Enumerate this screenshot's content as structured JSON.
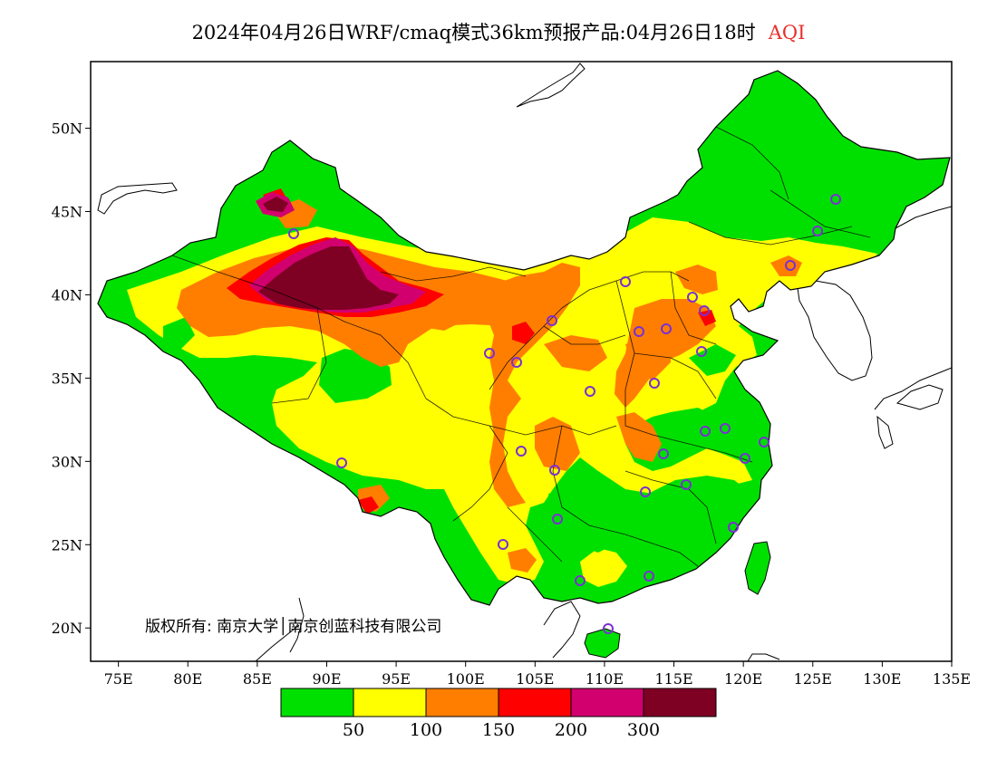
{
  "title": {
    "text": "2024年04月26日WRF/cmaq模式36km预报产品:04月26日18时",
    "variable": "AQI",
    "variable_color": "#e8302c"
  },
  "map": {
    "lon_range": [
      73,
      135
    ],
    "lat_range": [
      18,
      54
    ],
    "x_ticks": [
      "75E",
      "80E",
      "85E",
      "90E",
      "95E",
      "100E",
      "105E",
      "110E",
      "115E",
      "120E",
      "125E",
      "130E",
      "135E"
    ],
    "y_ticks": [
      "20N",
      "25N",
      "30N",
      "35N",
      "40N",
      "45N",
      "50N"
    ],
    "credit": "版权所有: 南京大学│南京创蓝科技有限公司"
  },
  "legend": {
    "colors": [
      "#00e000",
      "#ffff00",
      "#ff7e00",
      "#ff0000",
      "#d2006e",
      "#7e0023"
    ],
    "labels": [
      "50",
      "100",
      "150",
      "200",
      "300"
    ]
  }
}
